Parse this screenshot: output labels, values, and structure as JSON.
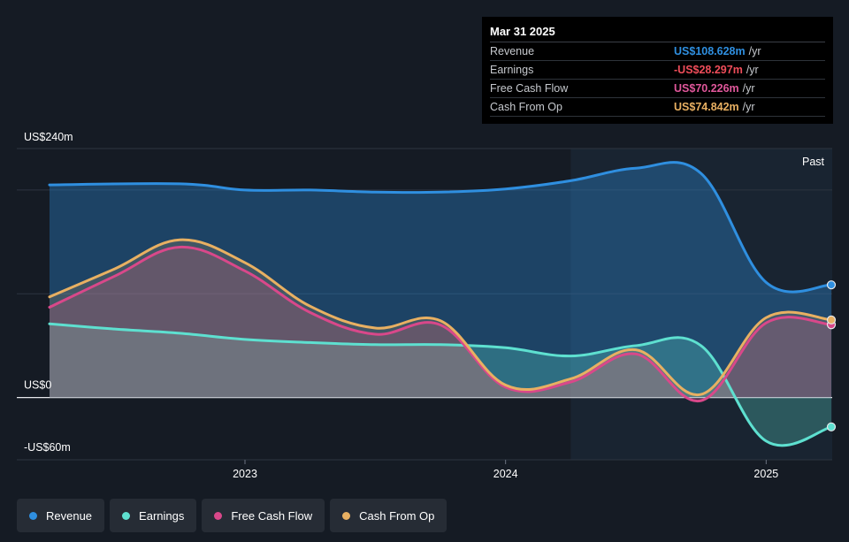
{
  "chart_data": {
    "type": "area",
    "y_unit_labels": [
      "US$240m",
      "US$0",
      "-US$60m"
    ],
    "ylim": [
      -60,
      240
    ],
    "gridlines": [
      0,
      100,
      200,
      240
    ],
    "xlim": [
      2022.25,
      2025.25
    ],
    "x_ticks": [
      {
        "x": 2023.0,
        "label": "2023"
      },
      {
        "x": 2024.0,
        "label": "2024"
      },
      {
        "x": 2025.0,
        "label": "2025"
      }
    ],
    "past_region_start": 2024.25,
    "past_label": "Past",
    "series": [
      {
        "name": "Revenue",
        "color": "#2f8fe0",
        "points": [
          [
            2022.25,
            205
          ],
          [
            2022.75,
            206
          ],
          [
            2023.0,
            200
          ],
          [
            2023.25,
            200
          ],
          [
            2023.5,
            198
          ],
          [
            2023.75,
            198
          ],
          [
            2024.0,
            201
          ],
          [
            2024.25,
            209
          ],
          [
            2024.5,
            221
          ],
          [
            2024.75,
            216
          ],
          [
            2025.0,
            111
          ],
          [
            2025.25,
            108.6
          ]
        ]
      },
      {
        "name": "Earnings",
        "color": "#5ee0d0",
        "points": [
          [
            2022.25,
            71
          ],
          [
            2022.5,
            66
          ],
          [
            2022.75,
            62
          ],
          [
            2023.0,
            56
          ],
          [
            2023.25,
            53
          ],
          [
            2023.5,
            51
          ],
          [
            2023.75,
            51
          ],
          [
            2024.0,
            48
          ],
          [
            2024.25,
            40
          ],
          [
            2024.5,
            50
          ],
          [
            2024.75,
            50
          ],
          [
            2025.0,
            -42
          ],
          [
            2025.25,
            -28.3
          ]
        ]
      },
      {
        "name": "Free Cash Flow",
        "color": "#d9488a",
        "points": [
          [
            2022.25,
            87
          ],
          [
            2022.5,
            117
          ],
          [
            2022.75,
            145
          ],
          [
            2023.0,
            122
          ],
          [
            2023.25,
            82
          ],
          [
            2023.5,
            61
          ],
          [
            2023.75,
            70
          ],
          [
            2024.0,
            10
          ],
          [
            2024.25,
            15
          ],
          [
            2024.5,
            42
          ],
          [
            2024.75,
            -3
          ],
          [
            2025.0,
            72
          ],
          [
            2025.25,
            70.2
          ]
        ]
      },
      {
        "name": "Cash From Op",
        "color": "#e8b062",
        "points": [
          [
            2022.25,
            97
          ],
          [
            2022.5,
            124
          ],
          [
            2022.75,
            152
          ],
          [
            2023.0,
            130
          ],
          [
            2023.25,
            88
          ],
          [
            2023.5,
            67
          ],
          [
            2023.75,
            74
          ],
          [
            2024.0,
            12
          ],
          [
            2024.25,
            18
          ],
          [
            2024.5,
            46
          ],
          [
            2024.75,
            3
          ],
          [
            2025.0,
            77
          ],
          [
            2025.25,
            74.8
          ]
        ]
      }
    ]
  },
  "tooltip": {
    "date": "Mar 31 2025",
    "rows": [
      {
        "label": "Revenue",
        "value": "US$108.628m",
        "unit": "/yr",
        "color": "#2f8fe0"
      },
      {
        "label": "Earnings",
        "value": "-US$28.297m",
        "unit": "/yr",
        "color": "#ef4d5a"
      },
      {
        "label": "Free Cash Flow",
        "value": "US$70.226m",
        "unit": "/yr",
        "color": "#e0579b"
      },
      {
        "label": "Cash From Op",
        "value": "US$74.842m",
        "unit": "/yr",
        "color": "#e8b062"
      }
    ]
  },
  "legend": [
    {
      "label": "Revenue",
      "color": "#2f8fe0"
    },
    {
      "label": "Earnings",
      "color": "#5ee0d0"
    },
    {
      "label": "Free Cash Flow",
      "color": "#d9488a"
    },
    {
      "label": "Cash From Op",
      "color": "#e8b062"
    }
  ]
}
